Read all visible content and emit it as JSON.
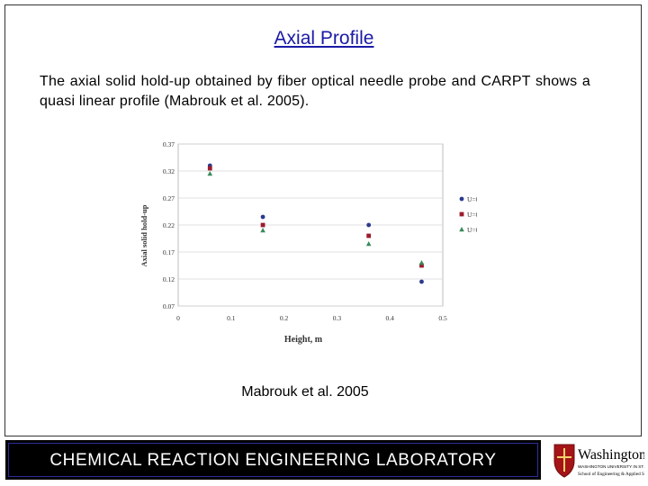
{
  "slide": {
    "title": "Axial Profile",
    "body": "The axial solid hold-up obtained by fiber optical needle probe and CARPT shows a quasi linear profile (Mabrouk et al. 2005).",
    "caption": "Mabrouk et al. 2005"
  },
  "footer": {
    "text": "CHEMICAL  REACTION  ENGINEERING  LABORATORY",
    "logo_title": "Washington",
    "logo_line1": "WASHINGTON UNIVERSITY IN ST. LOUIS",
    "logo_line2": "School of Engineering & Applied Science"
  },
  "colors": {
    "title": "#1a1aa6",
    "series1": "#2b3a8c",
    "series2": "#9b1c2c",
    "series3": "#3a8a5a",
    "logo_red": "#a51417"
  },
  "chart_data": {
    "type": "scatter",
    "xlabel": "Height, m",
    "ylabel": "Axial solid hold-up",
    "xlim": [
      0,
      0.5
    ],
    "ylim": [
      0.07,
      0.37
    ],
    "xticks": [
      "0",
      "0.1",
      "0.2",
      "0.3",
      "0.4",
      "0.5"
    ],
    "yticks": [
      "0.07",
      "0.12",
      "0.17",
      "0.22",
      "0.27",
      "0.32",
      "0.37"
    ],
    "grid": true,
    "legend": "right",
    "series": [
      {
        "name": "U=0.30m/s",
        "marker": "circle",
        "color": "#2b3a8c",
        "x": [
          0.06,
          0.16,
          0.36,
          0.46
        ],
        "y": [
          0.33,
          0.235,
          0.22,
          0.115
        ]
      },
      {
        "name": "U=0.38m/s",
        "marker": "square",
        "color": "#9b1c2c",
        "x": [
          0.06,
          0.16,
          0.36,
          0.46
        ],
        "y": [
          0.325,
          0.22,
          0.2,
          0.145
        ]
      },
      {
        "name": "U=0.53m/s",
        "marker": "triangle",
        "color": "#3a8a5a",
        "x": [
          0.06,
          0.16,
          0.36,
          0.46
        ],
        "y": [
          0.315,
          0.21,
          0.185,
          0.15
        ]
      }
    ]
  }
}
